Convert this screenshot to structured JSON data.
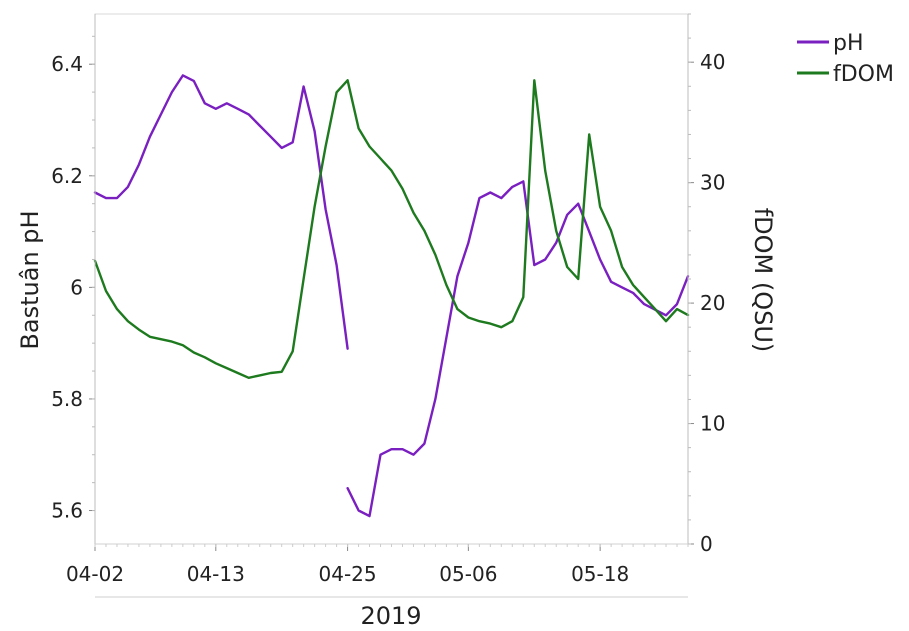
{
  "chart_data": {
    "type": "line",
    "title": "",
    "xlabel": "2019",
    "ylabel_left": "Bastuân pH",
    "ylabel_right": "fDOM (QSU)",
    "x_ticks": [
      "04-02",
      "04-13",
      "04-25",
      "05-06",
      "05-18"
    ],
    "x_range": [
      "2019-04-02",
      "2019-05-26"
    ],
    "y_left_ticks": [
      "5.6",
      "5.8",
      "6",
      "6.2",
      "6.4"
    ],
    "y_left_range": [
      5.54,
      6.49
    ],
    "y_right_ticks": [
      "0",
      "10",
      "20",
      "30",
      "40"
    ],
    "y_right_range": [
      0,
      44
    ],
    "grid": false,
    "legend_position": "top-right outside",
    "legend": [
      "pH",
      "fDOM"
    ],
    "series": [
      {
        "name": "pH",
        "axis": "left",
        "color": "#7a1fc0",
        "segments": [
          [
            [
              "2019-04-02",
              6.17
            ],
            [
              "2019-04-03",
              6.16
            ],
            [
              "2019-04-04",
              6.16
            ],
            [
              "2019-04-05",
              6.18
            ],
            [
              "2019-04-06",
              6.22
            ],
            [
              "2019-04-07",
              6.27
            ],
            [
              "2019-04-08",
              6.31
            ],
            [
              "2019-04-09",
              6.35
            ],
            [
              "2019-04-10",
              6.38
            ],
            [
              "2019-04-11",
              6.37
            ],
            [
              "2019-04-12",
              6.33
            ],
            [
              "2019-04-13",
              6.32
            ],
            [
              "2019-04-14",
              6.33
            ],
            [
              "2019-04-15",
              6.32
            ],
            [
              "2019-04-16",
              6.31
            ],
            [
              "2019-04-17",
              6.29
            ],
            [
              "2019-04-18",
              6.27
            ],
            [
              "2019-04-19",
              6.25
            ],
            [
              "2019-04-20",
              6.26
            ],
            [
              "2019-04-21",
              6.36
            ],
            [
              "2019-04-22",
              6.28
            ],
            [
              "2019-04-23",
              6.14
            ],
            [
              "2019-04-24",
              6.04
            ],
            [
              "2019-04-25",
              5.89
            ]
          ],
          [
            [
              "2019-04-25",
              5.64
            ],
            [
              "2019-04-26",
              5.6
            ],
            [
              "2019-04-27",
              5.59
            ],
            [
              "2019-04-28",
              5.7
            ],
            [
              "2019-04-29",
              5.71
            ],
            [
              "2019-04-30",
              5.71
            ],
            [
              "2019-05-01",
              5.7
            ],
            [
              "2019-05-02",
              5.72
            ],
            [
              "2019-05-03",
              5.8
            ],
            [
              "2019-05-04",
              5.91
            ],
            [
              "2019-05-05",
              6.02
            ],
            [
              "2019-05-06",
              6.08
            ],
            [
              "2019-05-07",
              6.16
            ],
            [
              "2019-05-08",
              6.17
            ],
            [
              "2019-05-09",
              6.16
            ],
            [
              "2019-05-10",
              6.18
            ],
            [
              "2019-05-11",
              6.19
            ],
            [
              "2019-05-12",
              6.04
            ],
            [
              "2019-05-13",
              6.05
            ],
            [
              "2019-05-14",
              6.08
            ],
            [
              "2019-05-15",
              6.13
            ],
            [
              "2019-05-16",
              6.15
            ],
            [
              "2019-05-17",
              6.1
            ],
            [
              "2019-05-18",
              6.05
            ],
            [
              "2019-05-19",
              6.01
            ],
            [
              "2019-05-20",
              6.0
            ],
            [
              "2019-05-21",
              5.99
            ],
            [
              "2019-05-22",
              5.97
            ],
            [
              "2019-05-23",
              5.96
            ],
            [
              "2019-05-24",
              5.95
            ],
            [
              "2019-05-25",
              5.97
            ],
            [
              "2019-05-26",
              6.02
            ]
          ]
        ]
      },
      {
        "name": "fDOM",
        "axis": "right",
        "color": "#1e7a1e",
        "segments": [
          [
            [
              "2019-04-02",
              23.5
            ],
            [
              "2019-04-03",
              21.0
            ],
            [
              "2019-04-04",
              19.5
            ],
            [
              "2019-04-05",
              18.5
            ],
            [
              "2019-04-06",
              17.8
            ],
            [
              "2019-04-07",
              17.2
            ],
            [
              "2019-04-08",
              17.0
            ],
            [
              "2019-04-09",
              16.8
            ],
            [
              "2019-04-10",
              16.5
            ],
            [
              "2019-04-11",
              15.9
            ],
            [
              "2019-04-12",
              15.5
            ],
            [
              "2019-04-13",
              15.0
            ],
            [
              "2019-04-14",
              14.6
            ],
            [
              "2019-04-15",
              14.2
            ],
            [
              "2019-04-16",
              13.8
            ],
            [
              "2019-04-17",
              14.0
            ],
            [
              "2019-04-18",
              14.2
            ],
            [
              "2019-04-19",
              14.3
            ],
            [
              "2019-04-20",
              16.0
            ],
            [
              "2019-04-21",
              22.0
            ],
            [
              "2019-04-22",
              28.0
            ],
            [
              "2019-04-23",
              33.0
            ],
            [
              "2019-04-24",
              37.5
            ],
            [
              "2019-04-25",
              38.5
            ],
            [
              "2019-04-26",
              34.5
            ],
            [
              "2019-04-27",
              33.0
            ],
            [
              "2019-04-28",
              32.0
            ],
            [
              "2019-04-29",
              31.0
            ],
            [
              "2019-04-30",
              29.5
            ],
            [
              "2019-05-01",
              27.5
            ],
            [
              "2019-05-02",
              26.0
            ],
            [
              "2019-05-03",
              24.0
            ],
            [
              "2019-05-04",
              21.5
            ],
            [
              "2019-05-05",
              19.5
            ],
            [
              "2019-05-06",
              18.8
            ],
            [
              "2019-05-07",
              18.5
            ],
            [
              "2019-05-08",
              18.3
            ],
            [
              "2019-05-09",
              18.0
            ],
            [
              "2019-05-10",
              18.5
            ],
            [
              "2019-05-11",
              20.5
            ],
            [
              "2019-05-12",
              38.5
            ],
            [
              "2019-05-13",
              31.0
            ],
            [
              "2019-05-14",
              26.0
            ],
            [
              "2019-05-15",
              23.0
            ],
            [
              "2019-05-16",
              22.0
            ],
            [
              "2019-05-17",
              34.0
            ],
            [
              "2019-05-18",
              28.0
            ],
            [
              "2019-05-19",
              26.0
            ],
            [
              "2019-05-20",
              23.0
            ],
            [
              "2019-05-21",
              21.5
            ],
            [
              "2019-05-22",
              20.5
            ],
            [
              "2019-05-23",
              19.5
            ],
            [
              "2019-05-24",
              18.5
            ],
            [
              "2019-05-25",
              19.5
            ],
            [
              "2019-05-26",
              19.0
            ]
          ]
        ]
      }
    ]
  }
}
